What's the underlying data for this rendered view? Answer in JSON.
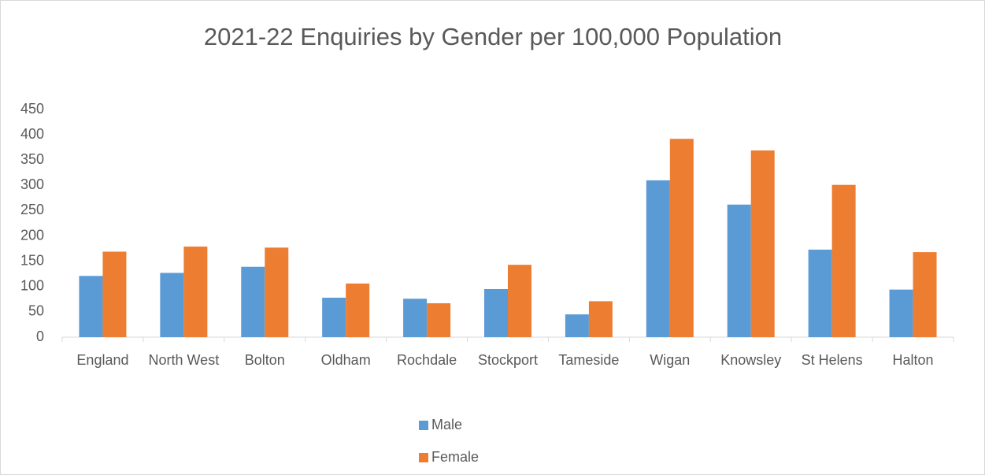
{
  "chart_data": {
    "type": "bar",
    "title": "2021-22 Enquiries by Gender per 100,000 Population",
    "categories": [
      "England",
      "North West",
      "Bolton",
      "Oldham",
      "Rochdale",
      "Stockport",
      "Tameside",
      "Wigan",
      "Knowsley",
      "St Helens",
      "Halton"
    ],
    "series": [
      {
        "name": "Male",
        "color": "#5b9bd5",
        "values": [
          121,
          127,
          139,
          78,
          76,
          95,
          45,
          310,
          262,
          173,
          94
        ]
      },
      {
        "name": "Female",
        "color": "#ed7d31",
        "values": [
          169,
          179,
          177,
          106,
          67,
          143,
          71,
          392,
          369,
          301,
          168
        ]
      }
    ],
    "ylim": [
      0,
      450
    ],
    "yticks": [
      0,
      50,
      100,
      150,
      200,
      250,
      300,
      350,
      400,
      450
    ],
    "grid": false,
    "legend": "bottom"
  }
}
